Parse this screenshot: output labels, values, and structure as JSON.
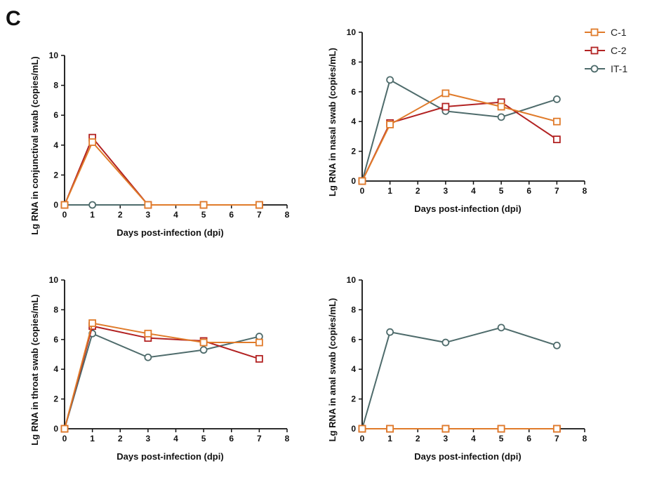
{
  "panel_label": "C",
  "legend": [
    {
      "name": "C-1",
      "color": "#E07B2A",
      "marker": "square"
    },
    {
      "name": "C-2",
      "color": "#B22222",
      "marker": "square"
    },
    {
      "name": "IT-1",
      "color": "#4E6B6B",
      "marker": "circle"
    }
  ],
  "chart_data": [
    {
      "type": "line",
      "id": "conjunctival",
      "title": "",
      "xlabel": "Days post-infection (dpi)",
      "ylabel": "Lg RNA in conjunctival swab (copies/mL)",
      "xlim": [
        0,
        8
      ],
      "ylim": [
        0,
        10
      ],
      "xticks": [
        0,
        1,
        2,
        3,
        4,
        5,
        6,
        7,
        8
      ],
      "yticks": [
        0,
        2,
        4,
        6,
        8,
        10
      ],
      "series": [
        {
          "name": "C-1",
          "x": [
            0,
            1,
            3,
            5,
            7
          ],
          "values": [
            0,
            4.2,
            0,
            0,
            0
          ]
        },
        {
          "name": "C-2",
          "x": [
            0,
            1,
            3,
            5,
            7
          ],
          "values": [
            0,
            4.5,
            0,
            0,
            0
          ]
        },
        {
          "name": "IT-1",
          "x": [
            0,
            1,
            3,
            5,
            7
          ],
          "values": [
            0,
            0,
            0,
            0,
            0
          ]
        }
      ]
    },
    {
      "type": "line",
      "id": "nasal",
      "title": "",
      "xlabel": "Days post-infection (dpi)",
      "ylabel": "Lg RNA in nasal swab (copies/mL)",
      "xlim": [
        0,
        8
      ],
      "ylim": [
        0,
        10
      ],
      "xticks": [
        0,
        1,
        2,
        3,
        4,
        5,
        6,
        7,
        8
      ],
      "yticks": [
        0,
        2,
        4,
        6,
        8,
        10
      ],
      "series": [
        {
          "name": "C-1",
          "x": [
            0,
            1,
            3,
            5,
            7
          ],
          "values": [
            0,
            3.8,
            5.9,
            5.0,
            4.0
          ]
        },
        {
          "name": "C-2",
          "x": [
            0,
            1,
            3,
            5,
            7
          ],
          "values": [
            0,
            3.9,
            5.0,
            5.3,
            2.8
          ]
        },
        {
          "name": "IT-1",
          "x": [
            0,
            1,
            3,
            5,
            7
          ],
          "values": [
            0,
            6.8,
            4.7,
            4.3,
            5.5
          ]
        }
      ]
    },
    {
      "type": "line",
      "id": "throat",
      "title": "",
      "xlabel": "Days post-infection (dpi)",
      "ylabel": "Lg RNA in throat swab (copies/mL)",
      "xlim": [
        0,
        8
      ],
      "ylim": [
        0,
        10
      ],
      "xticks": [
        0,
        1,
        2,
        3,
        4,
        5,
        6,
        7,
        8
      ],
      "yticks": [
        0,
        2,
        4,
        6,
        8,
        10
      ],
      "series": [
        {
          "name": "C-1",
          "x": [
            0,
            1,
            3,
            5,
            7
          ],
          "values": [
            0,
            7.1,
            6.4,
            5.8,
            5.8
          ]
        },
        {
          "name": "C-2",
          "x": [
            0,
            1,
            3,
            5,
            7
          ],
          "values": [
            0,
            6.9,
            6.1,
            5.9,
            4.7
          ]
        },
        {
          "name": "IT-1",
          "x": [
            0,
            1,
            3,
            5,
            7
          ],
          "values": [
            0,
            6.4,
            4.8,
            5.3,
            6.2
          ]
        }
      ]
    },
    {
      "type": "line",
      "id": "anal",
      "title": "",
      "xlabel": "Days post-infection (dpi)",
      "ylabel": "Lg RNA in anal swab (copies/mL)",
      "xlim": [
        0,
        8
      ],
      "ylim": [
        0,
        10
      ],
      "xticks": [
        0,
        1,
        2,
        3,
        4,
        5,
        6,
        7,
        8
      ],
      "yticks": [
        0,
        2,
        4,
        6,
        8,
        10
      ],
      "series": [
        {
          "name": "C-1",
          "x": [
            0,
            1,
            3,
            5,
            7
          ],
          "values": [
            0,
            0,
            0,
            0,
            0
          ]
        },
        {
          "name": "C-2",
          "x": [
            0,
            1,
            3,
            5,
            7
          ],
          "values": [
            0,
            0,
            0,
            0,
            0
          ]
        },
        {
          "name": "IT-1",
          "x": [
            0,
            1,
            3,
            5,
            7
          ],
          "values": [
            0,
            6.5,
            5.8,
            6.8,
            5.6
          ]
        }
      ]
    }
  ]
}
